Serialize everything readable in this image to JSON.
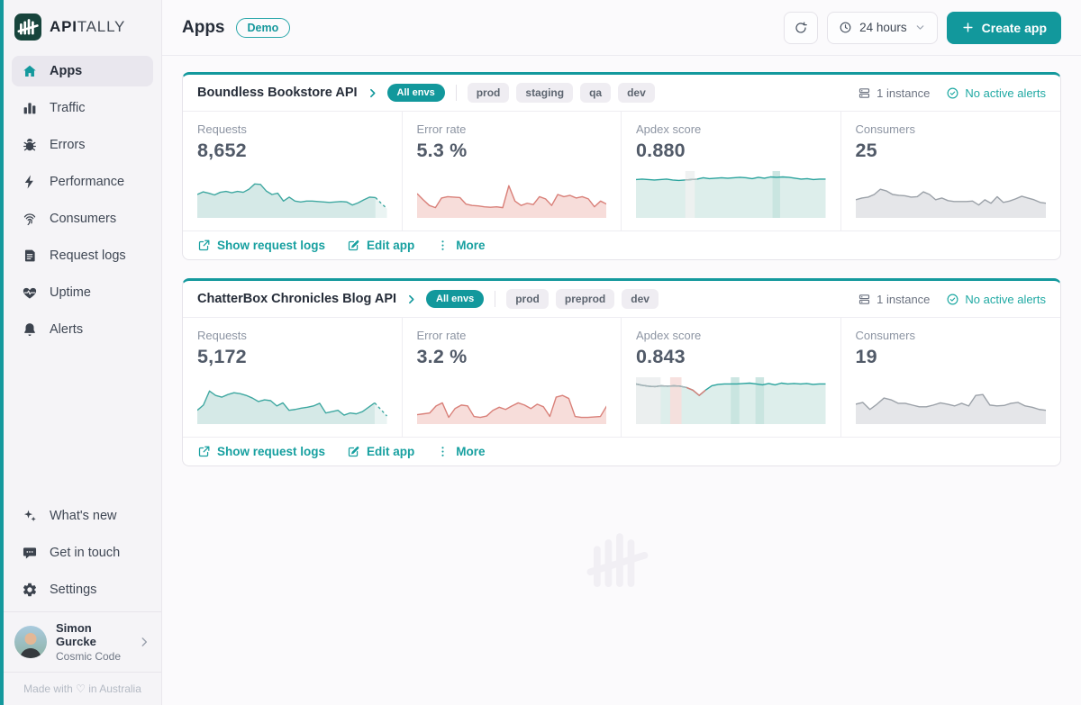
{
  "brand": {
    "wordmark_bold": "API",
    "wordmark_light": "TALLY"
  },
  "colors": {
    "accent": "#12989c",
    "link": "#17a0a0",
    "alerts_ok": "#1fa9a3",
    "requests_line": "#3fa8a1",
    "requests_fill": "#d5e9e7",
    "error_line": "#d98079",
    "error_fill": "#f7ddda",
    "apdex_line": "#2aa39d",
    "apdex_fill": "#ddeeeb",
    "consumers_line": "#9ba1a8",
    "consumers_fill": "#e5e6e9"
  },
  "sidebar": {
    "items": [
      {
        "label": "Apps",
        "icon": "home",
        "active": true
      },
      {
        "label": "Traffic",
        "icon": "bar-chart",
        "active": false
      },
      {
        "label": "Errors",
        "icon": "bug",
        "active": false
      },
      {
        "label": "Performance",
        "icon": "bolt",
        "active": false
      },
      {
        "label": "Consumers",
        "icon": "fingerprint",
        "active": false
      },
      {
        "label": "Request logs",
        "icon": "logs",
        "active": false
      },
      {
        "label": "Uptime",
        "icon": "heartbeat",
        "active": false
      },
      {
        "label": "Alerts",
        "icon": "bell",
        "active": false
      }
    ],
    "secondary": [
      {
        "label": "What's new",
        "icon": "sparkles"
      },
      {
        "label": "Get in touch",
        "icon": "chat"
      },
      {
        "label": "Settings",
        "icon": "gear"
      }
    ],
    "user": {
      "name": "Simon Gurcke",
      "org": "Cosmic Code"
    },
    "footer": "Made with ♡ in Australia"
  },
  "header": {
    "title": "Apps",
    "badge": "Demo",
    "time_range": "24 hours",
    "create_label": "Create app"
  },
  "apps": [
    {
      "name": "Boundless Bookstore API",
      "env_badge": "All envs",
      "envs": [
        "prod",
        "staging",
        "qa",
        "dev"
      ],
      "instances": "1 instance",
      "alerts": "No active alerts",
      "actions": [
        {
          "label": "Show request logs",
          "icon": "external-link"
        },
        {
          "label": "Edit app",
          "icon": "edit"
        },
        {
          "label": "More",
          "icon": "dots-vertical"
        }
      ],
      "metrics": [
        {
          "label": "Requests",
          "value": "8,652",
          "chart": {
            "type": "area",
            "line": "#3fa8a1",
            "fill": "#d5e9e7",
            "dash_from": 31,
            "values": [
              0.5,
              0.56,
              0.53,
              0.49,
              0.55,
              0.57,
              0.54,
              0.57,
              0.55,
              0.62,
              0.74,
              0.73,
              0.58,
              0.5,
              0.53,
              0.35,
              0.44,
              0.35,
              0.33,
              0.35,
              0.35,
              0.34,
              0.33,
              0.32,
              0.33,
              0.34,
              0.33,
              0.26,
              0.31,
              0.38,
              0.44,
              0.43,
              0.3,
              0.18
            ]
          }
        },
        {
          "label": "Error rate",
          "value": "5.3 %",
          "chart": {
            "type": "area",
            "line": "#d98079",
            "fill": "#f7ddda",
            "values": [
              0.52,
              0.38,
              0.25,
              0.2,
              0.42,
              0.45,
              0.44,
              0.43,
              0.28,
              0.25,
              0.24,
              0.22,
              0.21,
              0.22,
              0.2,
              0.7,
              0.35,
              0.25,
              0.3,
              0.27,
              0.45,
              0.4,
              0.25,
              0.5,
              0.45,
              0.48,
              0.42,
              0.45,
              0.4,
              0.22,
              0.35,
              0.28
            ]
          }
        },
        {
          "label": "Apdex score",
          "value": "0.880",
          "chart": {
            "type": "area",
            "line": "#2aa39d",
            "fill": "#ddeeeb",
            "bands": [
              {
                "from": 0.26,
                "to": 0.31,
                "color": "#eef1f1"
              },
              {
                "from": 0.72,
                "to": 0.76,
                "color": "#c6e3df"
              }
            ],
            "segments": [
              {
                "from": 8,
                "to": 10,
                "color": "#b4bcbc"
              }
            ],
            "values": [
              0.84,
              0.85,
              0.84,
              0.83,
              0.84,
              0.85,
              0.83,
              0.82,
              0.83,
              0.84,
              0.85,
              0.88,
              0.86,
              0.87,
              0.88,
              0.87,
              0.88,
              0.89,
              0.88,
              0.86,
              0.89,
              0.87,
              0.9,
              0.89,
              0.9,
              0.89,
              0.87,
              0.85,
              0.86,
              0.84,
              0.85,
              0.85
            ]
          }
        },
        {
          "label": "Consumers",
          "value": "25",
          "chart": {
            "type": "area",
            "line": "#9ba1a8",
            "fill": "#e5e6e9",
            "values": [
              0.38,
              0.42,
              0.44,
              0.5,
              0.62,
              0.58,
              0.5,
              0.48,
              0.47,
              0.44,
              0.45,
              0.56,
              0.5,
              0.38,
              0.42,
              0.36,
              0.34,
              0.34,
              0.34,
              0.35,
              0.26,
              0.38,
              0.3,
              0.45,
              0.32,
              0.35,
              0.4,
              0.46,
              0.42,
              0.38,
              0.32,
              0.3
            ]
          }
        }
      ]
    },
    {
      "name": "ChatterBox Chronicles Blog API",
      "env_badge": "All envs",
      "envs": [
        "prod",
        "preprod",
        "dev"
      ],
      "instances": "1 instance",
      "alerts": "No active alerts",
      "actions": [
        {
          "label": "Show request logs",
          "icon": "external-link"
        },
        {
          "label": "Edit app",
          "icon": "edit"
        },
        {
          "label": "More",
          "icon": "dots-vertical"
        }
      ],
      "metrics": [
        {
          "label": "Requests",
          "value": "5,172",
          "chart": {
            "type": "area",
            "line": "#3fa8a1",
            "fill": "#d5e9e7",
            "dash_from": 29,
            "values": [
              0.28,
              0.4,
              0.72,
              0.62,
              0.58,
              0.64,
              0.68,
              0.66,
              0.62,
              0.56,
              0.48,
              0.52,
              0.5,
              0.38,
              0.45,
              0.28,
              0.3,
              0.33,
              0.35,
              0.38,
              0.44,
              0.22,
              0.25,
              0.28,
              0.17,
              0.22,
              0.2,
              0.25,
              0.35,
              0.45,
              0.3,
              0.15
            ]
          }
        },
        {
          "label": "Error rate",
          "value": "3.2 %",
          "chart": {
            "type": "area",
            "line": "#d98079",
            "fill": "#f7ddda",
            "values": [
              0.18,
              0.2,
              0.22,
              0.38,
              0.45,
              0.12,
              0.32,
              0.4,
              0.38,
              0.14,
              0.12,
              0.15,
              0.28,
              0.35,
              0.3,
              0.38,
              0.45,
              0.4,
              0.32,
              0.42,
              0.36,
              0.14,
              0.58,
              0.62,
              0.55,
              0.14,
              0.12,
              0.12,
              0.13,
              0.14,
              0.38
            ]
          }
        },
        {
          "label": "Apdex score",
          "value": "0.843",
          "chart": {
            "type": "area",
            "line": "#2aa39d",
            "fill": "#ddeeeb",
            "bands": [
              {
                "from": 0.0,
                "to": 0.13,
                "color": "#eceef0"
              },
              {
                "from": 0.18,
                "to": 0.24,
                "color": "#f6dedb"
              },
              {
                "from": 0.5,
                "to": 0.545,
                "color": "#c6e3df"
              },
              {
                "from": 0.63,
                "to": 0.675,
                "color": "#c6e3df"
              }
            ],
            "segments": [
              {
                "from": 0,
                "to": 8,
                "color": "#a9b0b5"
              },
              {
                "from": 8,
                "to": 11,
                "color": "#d98079"
              }
            ],
            "values": [
              0.88,
              0.85,
              0.83,
              0.82,
              0.84,
              0.83,
              0.84,
              0.83,
              0.8,
              0.74,
              0.62,
              0.74,
              0.84,
              0.87,
              0.88,
              0.88,
              0.88,
              0.89,
              0.9,
              0.88,
              0.86,
              0.89,
              0.86,
              0.9,
              0.88,
              0.89,
              0.88,
              0.89,
              0.87,
              0.88,
              0.88
            ]
          }
        },
        {
          "label": "Consumers",
          "value": "19",
          "chart": {
            "type": "area",
            "line": "#9ba1a8",
            "fill": "#e5e6e9",
            "values": [
              0.42,
              0.46,
              0.3,
              0.42,
              0.56,
              0.52,
              0.44,
              0.44,
              0.4,
              0.36,
              0.36,
              0.4,
              0.45,
              0.42,
              0.38,
              0.44,
              0.38,
              0.62,
              0.64,
              0.4,
              0.38,
              0.39,
              0.44,
              0.46,
              0.38,
              0.35,
              0.3,
              0.28
            ]
          }
        }
      ]
    }
  ]
}
